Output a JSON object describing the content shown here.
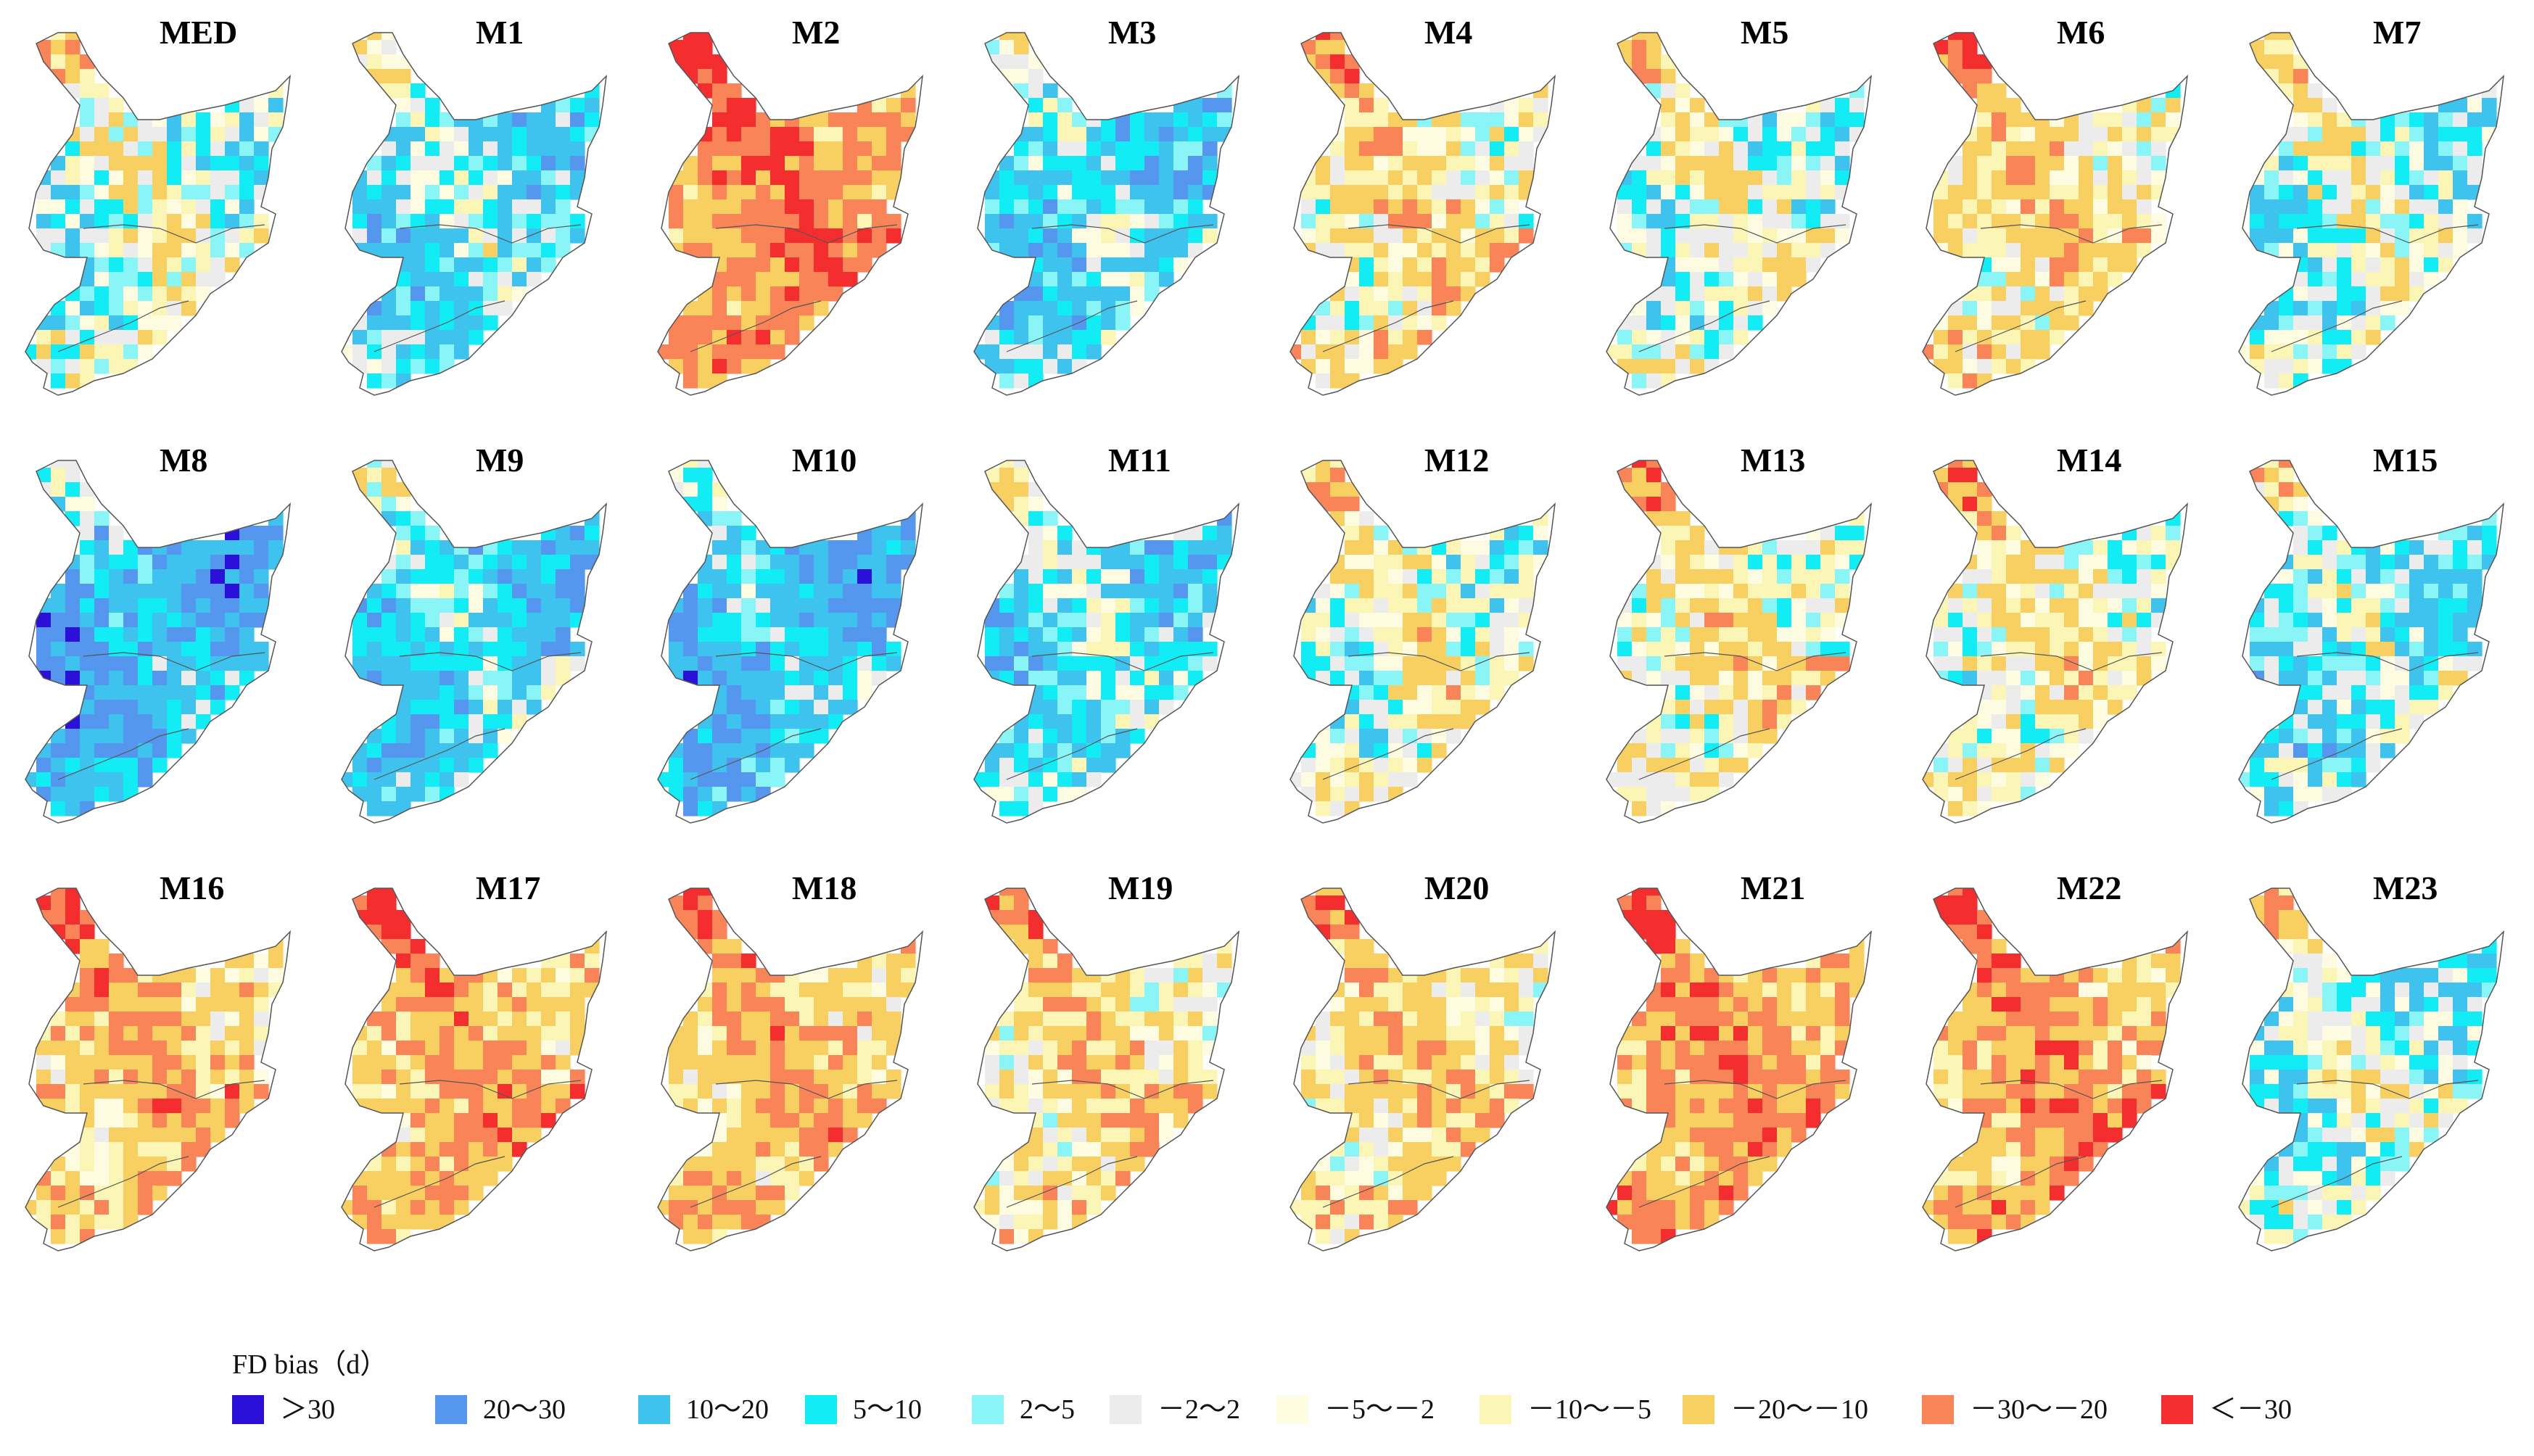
{
  "legend": {
    "title": "FD bias（d）",
    "classes": [
      {
        "label": "＞30",
        "color": "#2a10d8"
      },
      {
        "label": "20～30",
        "color": "#5596ee"
      },
      {
        "label": "10～20",
        "color": "#3ec3ee"
      },
      {
        "label": "5～10",
        "color": "#12ecf5"
      },
      {
        "label": "2～5",
        "color": "#8af5f7"
      },
      {
        "label": "－2～2",
        "color": "#ececec"
      },
      {
        "label": "－5～－2",
        "color": "#fefce0"
      },
      {
        "label": "－10～－5",
        "color": "#fbf5b6"
      },
      {
        "label": "－20～－10",
        "color": "#f8d061"
      },
      {
        "label": "－30～－20",
        "color": "#f98458"
      },
      {
        "label": "＜－30",
        "color": "#f42e2e"
      }
    ]
  },
  "panels": [
    {
      "label": "MED",
      "bias": 5
    },
    {
      "label": "M1",
      "bias": 12
    },
    {
      "label": "M2",
      "bias": -18
    },
    {
      "label": "M3",
      "bias": 14
    },
    {
      "label": "M4",
      "bias": -4
    },
    {
      "label": "M5",
      "bias": 4
    },
    {
      "label": "M6",
      "bias": -5
    },
    {
      "label": "M7",
      "bias": 5
    },
    {
      "label": "M8",
      "bias": 22
    },
    {
      "label": "M9",
      "bias": 16
    },
    {
      "label": "M10",
      "bias": 20
    },
    {
      "label": "M11",
      "bias": 12
    },
    {
      "label": "M12",
      "bias": 2
    },
    {
      "label": "M13",
      "bias": -2
    },
    {
      "label": "M14",
      "bias": 0
    },
    {
      "label": "M15",
      "bias": 10
    },
    {
      "label": "M16",
      "bias": -10
    },
    {
      "label": "M17",
      "bias": -12
    },
    {
      "label": "M18",
      "bias": -10
    },
    {
      "label": "M19",
      "bias": -6
    },
    {
      "label": "M20",
      "bias": -6
    },
    {
      "label": "M21",
      "bias": -16
    },
    {
      "label": "M22",
      "bias": -14
    },
    {
      "label": "M23",
      "bias": 6
    }
  ]
}
